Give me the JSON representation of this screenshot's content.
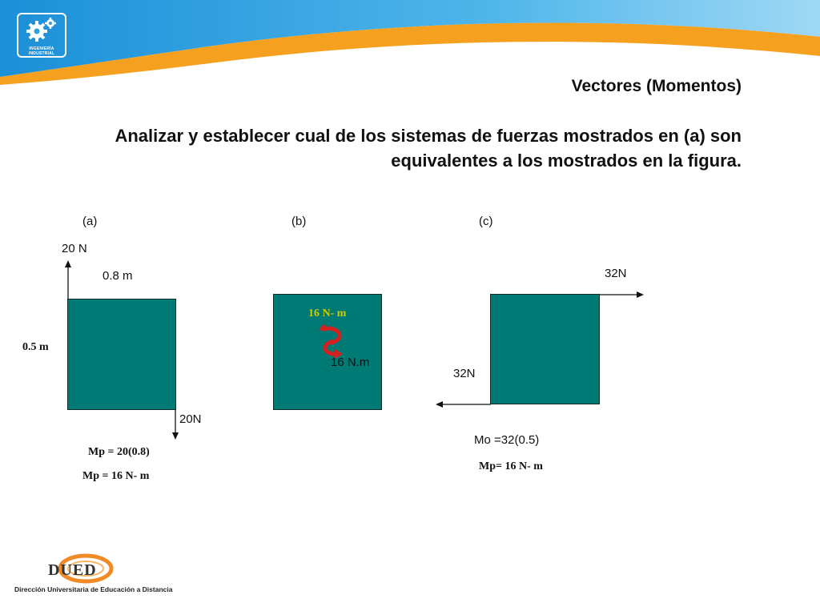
{
  "header": {
    "logo_text": "INGENIERÍA INDUSTRIAL"
  },
  "slide": {
    "title": "Vectores (Momentos)",
    "subtitle": "Analizar y establecer cual de los sistemas de fuerzas mostrados en (a) son equivalentes a los mostrados en la figura."
  },
  "fig_a": {
    "label": "(a)",
    "force_up": "20 N",
    "width": "0.8 m",
    "height": "0.5 m",
    "force_down": "20N",
    "eq1": "Mp = 20(0.8)",
    "eq2": "Mp = 16 N- m"
  },
  "fig_b": {
    "label": "(b)",
    "moment_colored": "16 N- m",
    "moment": "16 N.m"
  },
  "fig_c": {
    "label": "(c)",
    "force_right": "32N",
    "force_left": "32N",
    "eq1": "Mo =32(0.5)",
    "eq2": "Mp= 16 N- m"
  },
  "footer": {
    "logo_text": "DUED",
    "caption": "Dirección Universitaria de Educación a Distancia"
  },
  "colors": {
    "box": "#007a74",
    "banner_blue": "#29a3e0",
    "banner_orange": "#f5a01e",
    "moment_text": "#cccc00",
    "curl_arrow": "#d42020"
  }
}
